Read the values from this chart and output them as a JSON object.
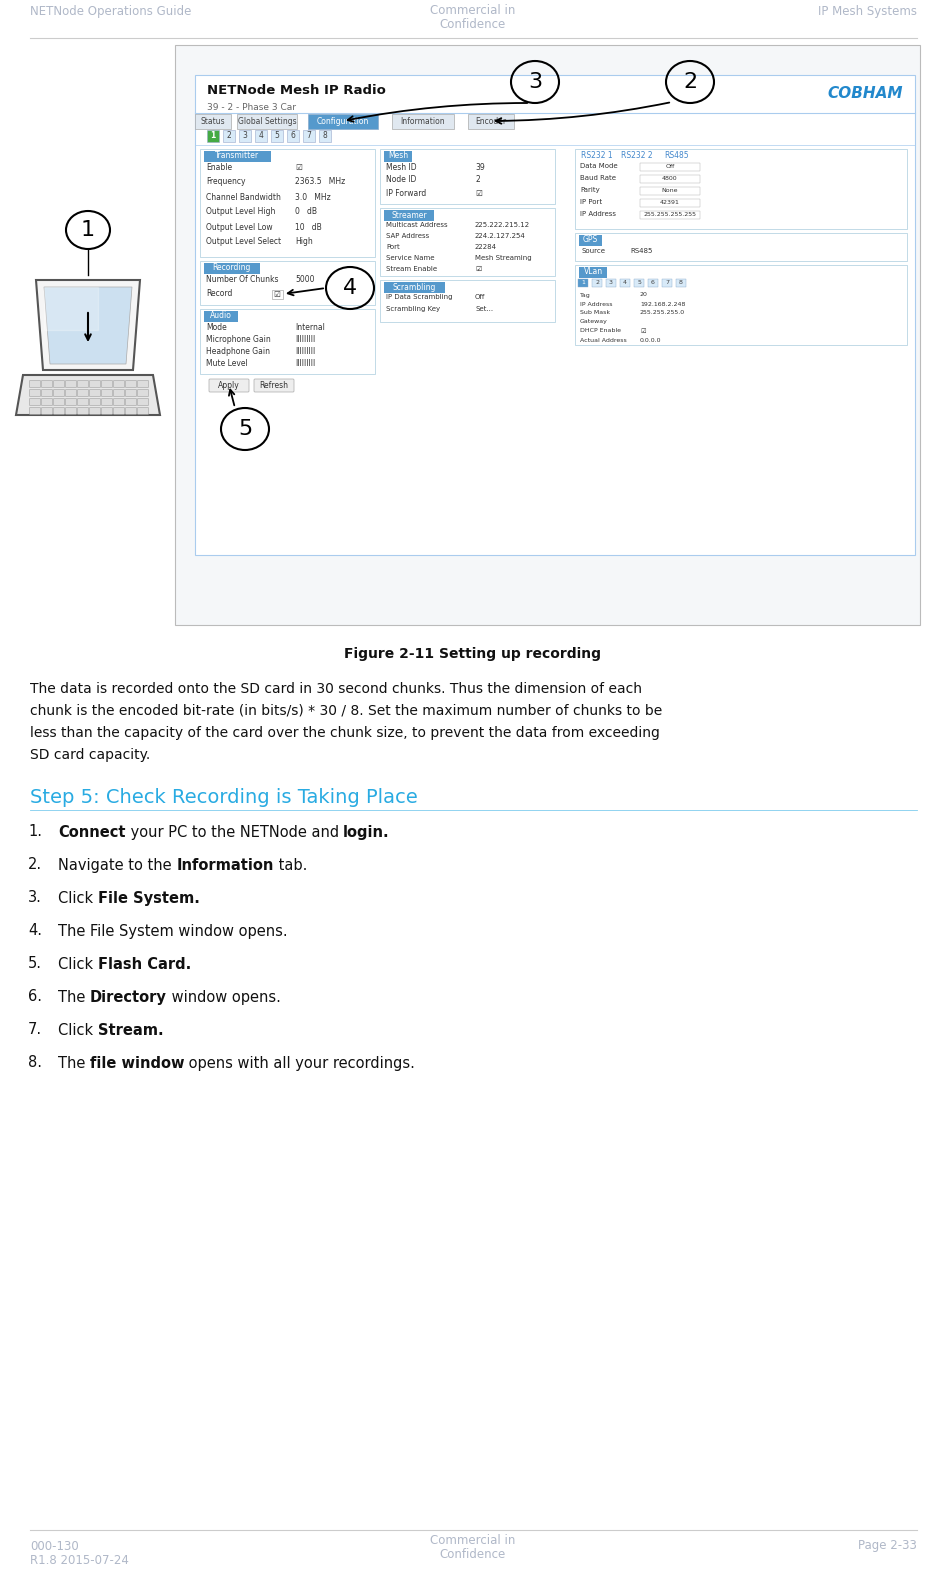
{
  "header_left": "NETNode Operations Guide",
  "header_center": "Commercial in\nConfidence",
  "header_right": "IP Mesh Systems",
  "footer_left": "000-130\nR1.8 2015-07-24",
  "footer_center": "Commercial in\nConfidence",
  "footer_right": "Page 2-33",
  "figure_caption": "Figure 2-11 Setting up recording",
  "body_text_lines": [
    "The data is recorded onto the SD card in 30 second chunks. Thus the dimension of each",
    "chunk is the encoded bit-rate (in bits/s) * 30 / 8. Set the maximum number of chunks to be",
    "less than the capacity of the card over the chunk size, to prevent the data from exceeding",
    "SD card capacity."
  ],
  "step5_heading": "Step 5: Check Recording is Taking Place",
  "step_items": [
    [
      [
        "Connect",
        true
      ],
      [
        " your PC to the NETNode and ",
        false
      ],
      [
        "login.",
        true
      ]
    ],
    [
      [
        "Navigate to the ",
        false
      ],
      [
        "Information",
        true
      ],
      [
        " tab.",
        false
      ]
    ],
    [
      [
        "Click ",
        false
      ],
      [
        "File System.",
        true
      ]
    ],
    [
      [
        "The File System window opens.",
        false
      ]
    ],
    [
      [
        "Click ",
        false
      ],
      [
        "Flash Card.",
        true
      ]
    ],
    [
      [
        "The ",
        false
      ],
      [
        "Directory",
        true
      ],
      [
        " window opens.",
        false
      ]
    ],
    [
      [
        "Click ",
        false
      ],
      [
        "Stream.",
        true
      ]
    ],
    [
      [
        "The ",
        false
      ],
      [
        "file window",
        true
      ],
      [
        " opens with all your recordings.",
        false
      ]
    ]
  ],
  "header_color": "#b0b8c8",
  "footer_color": "#b0b8c8",
  "step5_color": "#29ABE2",
  "bg_color": "#ffffff",
  "line_color": "#cccccc"
}
